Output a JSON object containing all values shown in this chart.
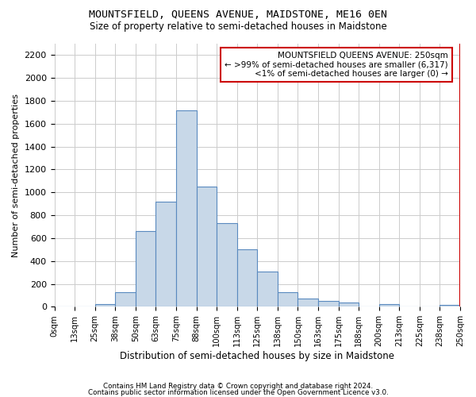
{
  "title": "MOUNTSFIELD, QUEENS AVENUE, MAIDSTONE, ME16 0EN",
  "subtitle": "Size of property relative to semi-detached houses in Maidstone",
  "xlabel": "Distribution of semi-detached houses by size in Maidstone",
  "ylabel": "Number of semi-detached properties",
  "bar_color": "#c8d8e8",
  "bar_edge_color": "#5a8abf",
  "background_color": "#ffffff",
  "grid_color": "#cccccc",
  "annotation_border_color": "#cc0000",
  "annotation_line1": "MOUNTSFIELD QUEENS AVENUE: 250sqm",
  "annotation_line2": "← >99% of semi-detached houses are smaller (6,317)",
  "annotation_line3": "<1% of semi-detached houses are larger (0) →",
  "highlight_bar_edge_color": "#cc0000",
  "tick_labels": [
    "0sqm",
    "13sqm",
    "25sqm",
    "38sqm",
    "50sqm",
    "63sqm",
    "75sqm",
    "88sqm",
    "100sqm",
    "113sqm",
    "125sqm",
    "138sqm",
    "150sqm",
    "163sqm",
    "175sqm",
    "188sqm",
    "200sqm",
    "213sqm",
    "225sqm",
    "238sqm",
    "250sqm"
  ],
  "values": [
    0,
    0,
    25,
    130,
    660,
    920,
    1720,
    1050,
    730,
    500,
    310,
    125,
    70,
    50,
    40,
    0,
    25,
    0,
    0,
    15
  ],
  "ylim": [
    0,
    2300
  ],
  "yticks": [
    0,
    200,
    400,
    600,
    800,
    1000,
    1200,
    1400,
    1600,
    1800,
    2000,
    2200
  ],
  "footer_line1": "Contains HM Land Registry data © Crown copyright and database right 2024.",
  "footer_line2": "Contains public sector information licensed under the Open Government Licence v3.0."
}
